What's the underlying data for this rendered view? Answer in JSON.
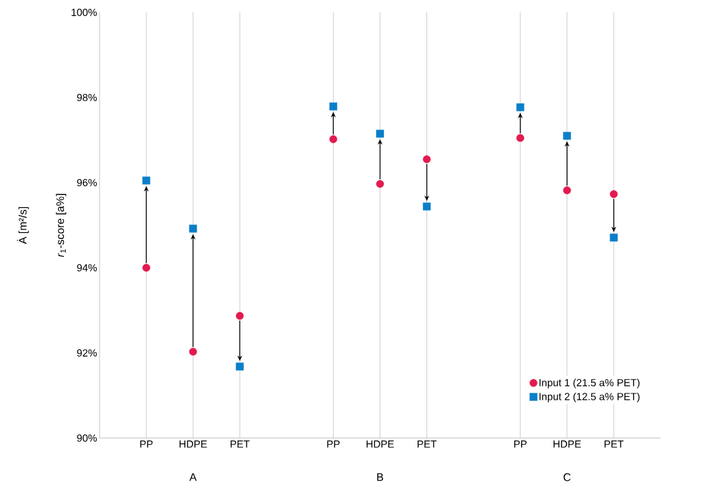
{
  "chart_data": {
    "type": "scatter",
    "categories": [
      "PP",
      "HDPE",
      "PET",
      null,
      "PP",
      "HDPE",
      "PET",
      null,
      "PP",
      "HDPE",
      "PET"
    ],
    "series": [
      {
        "name": "Input 1 (21.5 a% PET)",
        "color": "#e31b4f",
        "marker": "circle",
        "values": [
          94.0,
          92.03,
          92.87,
          null,
          97.02,
          95.97,
          96.55,
          null,
          97.05,
          95.82,
          95.73
        ]
      },
      {
        "name": "Input 2 (12.5 a% PET)",
        "color": "#0a7fc9",
        "marker": "square",
        "values": [
          96.05,
          94.92,
          91.68,
          null,
          97.79,
          97.15,
          95.44,
          null,
          97.77,
          97.1,
          94.71
        ]
      }
    ],
    "ylabel": "*r*$_{1}$-score [a%]",
    "annotations": [
      "A",
      "B",
      "C",
      "Ȧ [m²/s]"
    ],
    "ylim": [
      90,
      100
    ],
    "yticks": [
      {
        "value": 90,
        "label": "90%"
      },
      {
        "value": 92,
        "label": "92%"
      },
      {
        "value": 94,
        "label": "94%"
      },
      {
        "value": 96,
        "label": "96%"
      },
      {
        "value": 98,
        "label": "98%"
      },
      {
        "value": 100,
        "label": "100%"
      }
    ],
    "grid": "x",
    "legend": "bottom right"
  }
}
